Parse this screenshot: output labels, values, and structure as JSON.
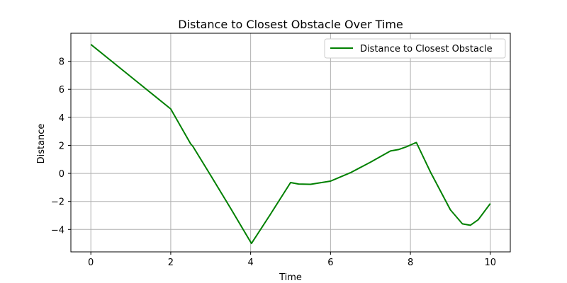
{
  "chart_data": {
    "type": "line",
    "title": "Distance to Closest Obstacle Over Time",
    "xlabel": "Time",
    "ylabel": "Distance",
    "xlim": [
      -0.5,
      10.5
    ],
    "ylim": [
      -5.6,
      10.0
    ],
    "xticks": [
      0,
      2,
      4,
      6,
      8,
      10
    ],
    "yticks": [
      -4,
      -2,
      0,
      2,
      4,
      6,
      8
    ],
    "grid": true,
    "legend_position": "top-right",
    "series": [
      {
        "name": "Distance to Closest Obstacle",
        "color": "#008000",
        "x": [
          0,
          0.5,
          1.0,
          1.5,
          2.0,
          2.5,
          2.55,
          3.0,
          3.5,
          4.02,
          4.5,
          5.0,
          5.2,
          5.5,
          6.0,
          6.5,
          7.0,
          7.5,
          7.7,
          7.9,
          8.1,
          8.15,
          8.5,
          9.0,
          9.3,
          9.5,
          9.7,
          10.0
        ],
        "y": [
          9.2,
          8.05,
          6.9,
          5.75,
          4.6,
          2.1,
          1.95,
          -0.15,
          -2.5,
          -5.0,
          -2.9,
          -0.65,
          -0.76,
          -0.78,
          -0.55,
          0.05,
          0.8,
          1.6,
          1.7,
          1.9,
          2.15,
          2.2,
          0.1,
          -2.6,
          -3.6,
          -3.7,
          -3.3,
          -2.15
        ]
      }
    ]
  }
}
